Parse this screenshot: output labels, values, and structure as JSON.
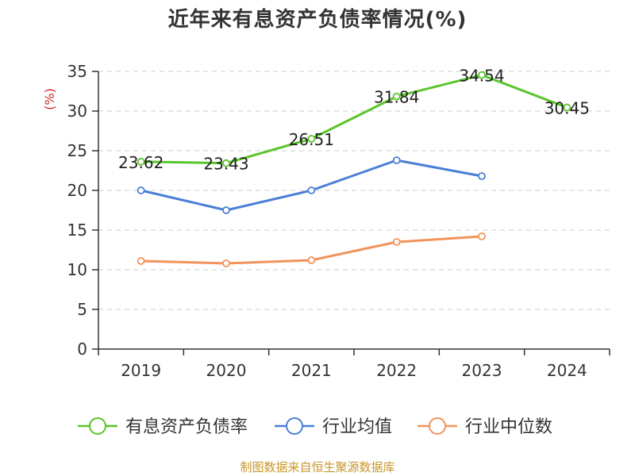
{
  "chart_data": {
    "type": "line",
    "title": "近年来有息资产负债率情况(%)",
    "ylabel": "(%)",
    "xlabel": "",
    "categories": [
      "2019",
      "2020",
      "2021",
      "2022",
      "2023",
      "2024"
    ],
    "ylim": [
      0,
      35
    ],
    "yticks": [
      0,
      5,
      10,
      15,
      20,
      25,
      30,
      35
    ],
    "grid": true,
    "legend_position": "bottom",
    "series": [
      {
        "name": "有息资产负债率",
        "color": "#5ac52b",
        "values": [
          23.62,
          23.43,
          26.51,
          31.84,
          34.54,
          30.45
        ],
        "labels": [
          "23.62",
          "23.43",
          "26.51",
          "31.84",
          "34.54",
          "30.45"
        ]
      },
      {
        "name": "行业均值",
        "color": "#4a7fd6",
        "values": [
          20.0,
          17.5,
          20.0,
          23.8,
          21.8,
          null
        ]
      },
      {
        "name": "行业中位数",
        "color": "#f2935b",
        "values": [
          11.1,
          10.8,
          11.2,
          13.5,
          14.2,
          null
        ]
      }
    ]
  },
  "source": "制图数据来自恒生聚源数据库"
}
